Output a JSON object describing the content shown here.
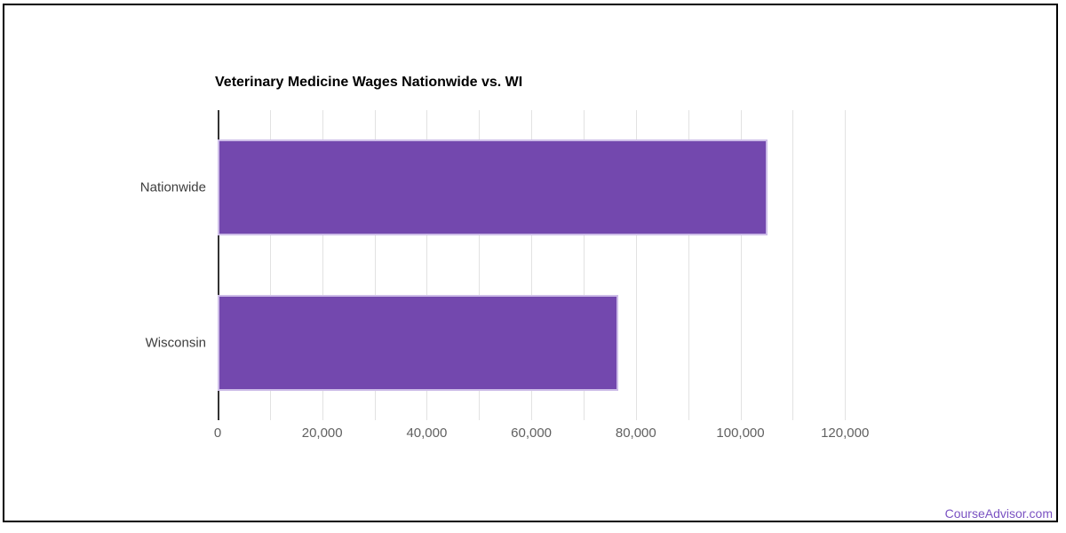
{
  "footer": {
    "watermark": "CourseAdvisor.com"
  },
  "chart_data": {
    "type": "bar",
    "orientation": "horizontal",
    "title": "Veterinary Medicine Wages Nationwide vs. WI",
    "categories": [
      "Nationwide",
      "Wisconsin"
    ],
    "values": [
      105100,
      76600
    ],
    "xlabel": "",
    "ylabel": "",
    "xlim": [
      0,
      130000
    ],
    "xticks": [
      {
        "value": 0,
        "label": "0"
      },
      {
        "value": 20000,
        "label": "20,000"
      },
      {
        "value": 40000,
        "label": "40,000"
      },
      {
        "value": 60000,
        "label": "60,000"
      },
      {
        "value": 80000,
        "label": "80,000"
      },
      {
        "value": 100000,
        "label": "100,000"
      },
      {
        "value": 120000,
        "label": "120,000"
      }
    ],
    "gridlines": {
      "step": 10000,
      "max": 120000
    },
    "grid": true,
    "legend": "none",
    "colors": {
      "bar_fill": "#7348ae",
      "bar_stroke": "#cdbde8",
      "gridline": "#e2e2e2",
      "axis_line": "#333333",
      "tick_text": "#616161",
      "category_text": "#3d3d3d",
      "title_text": "#000000",
      "watermark_text": "#7a52c2",
      "frame_border": "#000000"
    }
  }
}
